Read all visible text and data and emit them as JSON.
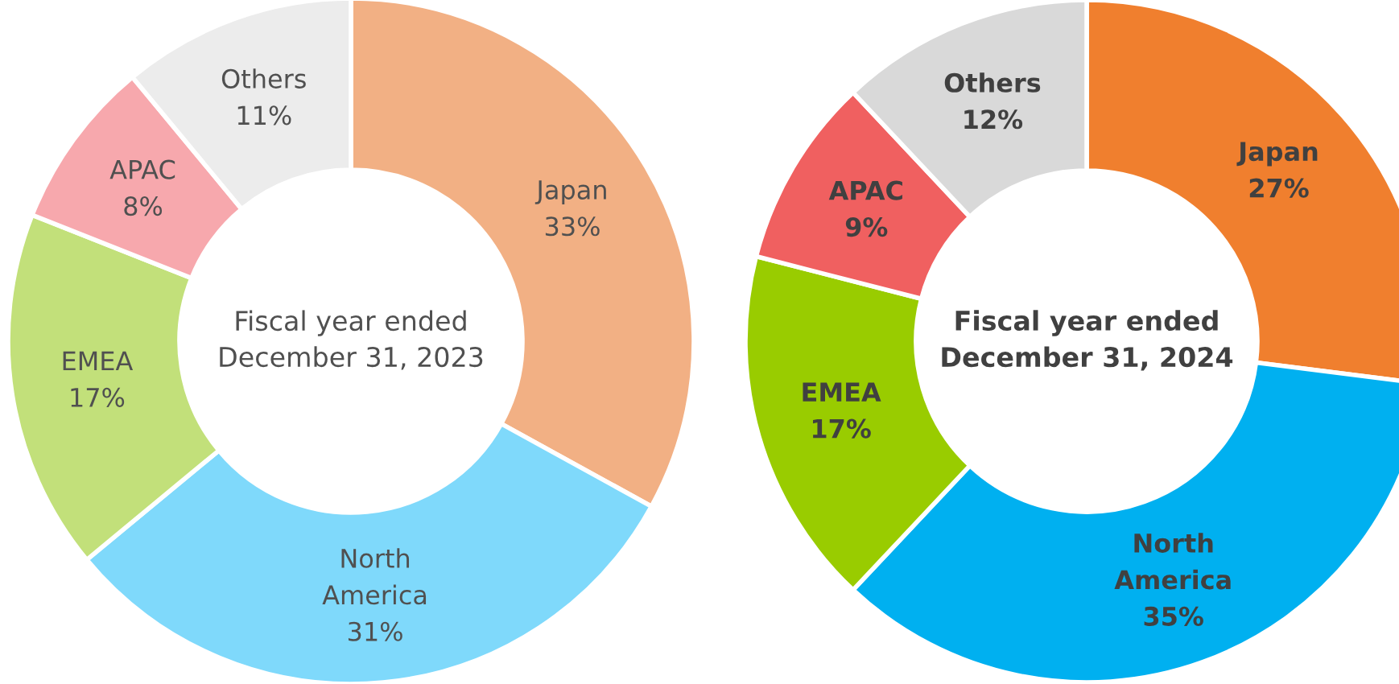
{
  "chart_data": [
    {
      "type": "donut",
      "title": "Fiscal year ended\nDecember 31, 2023",
      "categories": [
        "Japan",
        "North\nAmerica",
        "EMEA",
        "APAC",
        "Others"
      ],
      "values": [
        33,
        31,
        17,
        8,
        11
      ],
      "value_labels": [
        "33%",
        "31%",
        "17%",
        "8%",
        "11%"
      ],
      "colors": [
        "#f2b084",
        "#7fd9fb",
        "#c2e07a",
        "#f7a8ad",
        "#ececec"
      ]
    },
    {
      "type": "donut",
      "title": "Fiscal year ended\nDecember 31, 2024",
      "categories": [
        "Japan",
        "North\nAmerica",
        "EMEA",
        "APAC",
        "Others"
      ],
      "values": [
        27,
        35,
        17,
        9,
        12
      ],
      "value_labels": [
        "27%",
        "35%",
        "17%",
        "9%",
        "12%"
      ],
      "colors": [
        "#f07f2e",
        "#00b0f0",
        "#99cc00",
        "#f06060",
        "#d9d9d9"
      ]
    }
  ]
}
